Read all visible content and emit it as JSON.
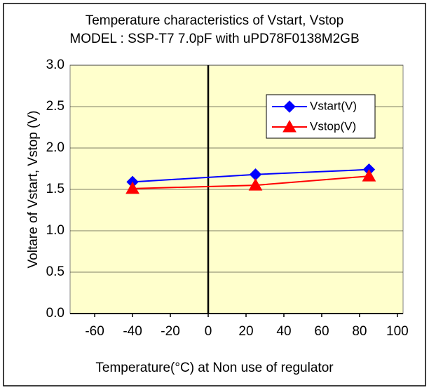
{
  "chart_data": {
    "type": "line",
    "title": "Temperature characteristics of Vstart, Vstop",
    "subtitle": "MODEL : SSP-T7 7.0pF with uPD78F0138M2GB",
    "x_label": "Temperature(°C)  at  Non use of regulator",
    "y_label": "Voltare of Vstart,  Vstop (V)",
    "x": [
      -40,
      25,
      85
    ],
    "series": [
      {
        "name": "Vstart(V)",
        "color": "#0000ff",
        "marker": "diamond",
        "values": [
          1.59,
          1.68,
          1.74
        ]
      },
      {
        "name": "Vstop(V)",
        "color": "#ff0000",
        "marker": "triangle",
        "values": [
          1.51,
          1.55,
          1.66
        ]
      }
    ],
    "xlim": [
      -73,
      103
    ],
    "xticks": [
      -60,
      -40,
      -20,
      0,
      20,
      40,
      60,
      80,
      100
    ],
    "ylim": [
      0,
      3
    ],
    "yticks": [
      {
        "value": 0,
        "label": "0.0"
      },
      {
        "value": 0.5,
        "label": "0.5"
      },
      {
        "value": 1,
        "label": "1.0"
      },
      {
        "value": 1.5,
        "label": "1.5"
      },
      {
        "value": 2,
        "label": "2.0"
      },
      {
        "value": 2.5,
        "label": "2.5"
      },
      {
        "value": 3,
        "label": "3.0"
      }
    ],
    "grid": true,
    "legend": "upper right",
    "plot_background": "#ffffcc"
  }
}
